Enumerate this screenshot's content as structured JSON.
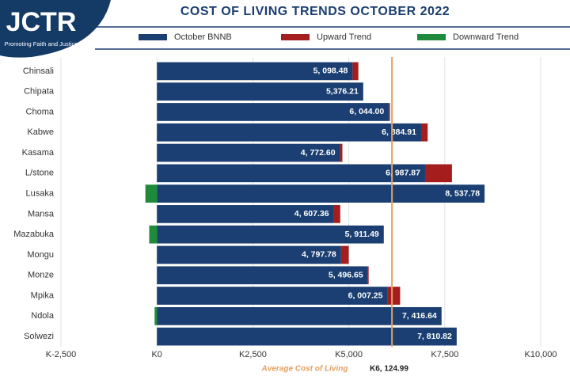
{
  "logo": {
    "name": "JCTR",
    "tagline": "Promoting Faith and Justice"
  },
  "chart_data": {
    "type": "hbar_stacked",
    "title": "COST OF LIVING TRENDS OCTOBER 2022",
    "categories": [
      "Chinsali",
      "Chipata",
      "Choma",
      "Kabwe",
      "Kasama",
      "L/stone",
      "Lusaka",
      "Mansa",
      "Mazabuka",
      "Mongu",
      "Monze",
      "Mpika",
      "Ndola",
      "Solwezi"
    ],
    "series": [
      {
        "name": "October BNNB",
        "color": "#1b3f72",
        "values": [
          5098.48,
          5376.21,
          6044.0,
          6884.91,
          4772.6,
          6987.87,
          8537.78,
          4607.36,
          5911.49,
          4797.78,
          5496.65,
          6007.25,
          7416.64,
          7810.82
        ],
        "value_labels": [
          "5, 098.48",
          "5,376.21",
          "6, 044.00",
          "6, 884.91",
          "4, 772.60",
          "6, 987.87",
          "8, 537.78",
          "4, 607.36",
          "5, 911.49",
          "4, 797.78",
          "5, 496.65",
          "6, 007.25",
          "7, 416.64",
          "7, 810.82"
        ]
      },
      {
        "name": "Upward Trend",
        "color": "#a51d1d",
        "values": [
          150,
          null,
          30,
          170,
          60,
          700,
          null,
          170,
          null,
          200,
          20,
          330,
          null,
          null
        ]
      },
      {
        "name": "Downward Trend",
        "color": "#1e8a3a",
        "values": [
          null,
          null,
          null,
          null,
          null,
          null,
          -300,
          null,
          -200,
          null,
          null,
          null,
          -60,
          null
        ]
      }
    ],
    "xlim": [
      -2500,
      10000
    ],
    "xticks": [
      {
        "value": -2500,
        "label": "K-2,500"
      },
      {
        "value": 0,
        "label": "K0"
      },
      {
        "value": 2500,
        "label": "K2,500"
      },
      {
        "value": 5000,
        "label": "K5,000"
      },
      {
        "value": 7500,
        "label": "K7,500"
      },
      {
        "value": 10000,
        "label": "K10,000"
      }
    ],
    "grid": true,
    "average": {
      "label": "Average Cost of Living",
      "value": 6124.99,
      "value_label": "K6, 124.99",
      "color": "#e3a062"
    }
  }
}
